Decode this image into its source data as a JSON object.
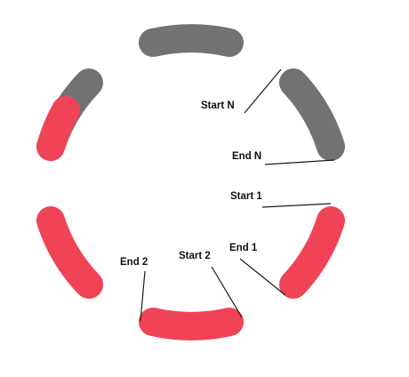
{
  "colors": {
    "inactive": "#727272",
    "active": "#f04356",
    "line": "#1a1a1a"
  },
  "segments": [
    {
      "id": "top",
      "state": "inactive"
    },
    {
      "id": "upper-right",
      "state": "inactive"
    },
    {
      "id": "lower-right",
      "state": "active"
    },
    {
      "id": "bottom",
      "state": "active"
    },
    {
      "id": "lower-left",
      "state": "active"
    },
    {
      "id": "upper-left",
      "state": "split",
      "active_fraction": 0.55
    }
  ],
  "labels": {
    "start_n": "Start N",
    "end_n": "End N",
    "start_1": "Start 1",
    "end_1": "End 1",
    "start_2": "Start 2",
    "end_2": "End 2"
  }
}
